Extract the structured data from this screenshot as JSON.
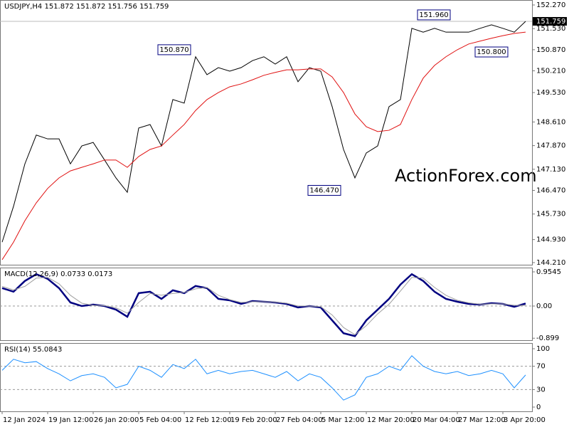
{
  "chart_data": [
    {
      "type": "line",
      "title": "USDJPY,H4  151.872 151.872 151.756 151.759",
      "watermark": "ActionForex.com",
      "categories": [
        "12 Jan 2024",
        null,
        null,
        null,
        "19 Jan 12:00",
        null,
        null,
        null,
        "26 Jan 20:00",
        null,
        null,
        null,
        "5 Feb 04:00",
        null,
        null,
        null,
        "12 Feb 12:00",
        null,
        null,
        null,
        "19 Feb 20:00",
        null,
        null,
        null,
        "27 Feb 04:00",
        null,
        null,
        null,
        "5 Mar 12:00",
        null,
        null,
        null,
        "12 Mar 20:00",
        null,
        null,
        null,
        "20 Mar 04:00",
        null,
        null,
        null,
        "27 Mar 12:00",
        null,
        null,
        null,
        "3 Apr 20:00",
        null,
        null
      ],
      "series": [
        {
          "color": "#000000",
          "values": [
            144.85,
            145.97,
            147.3,
            148.2,
            148.08,
            148.08,
            147.3,
            147.86,
            147.97,
            147.42,
            146.86,
            146.41,
            148.42,
            148.53,
            147.86,
            149.31,
            149.2,
            150.65,
            150.09,
            150.31,
            150.2,
            150.31,
            150.53,
            150.65,
            150.42,
            150.65,
            149.87,
            150.31,
            150.2,
            149.09,
            147.75,
            146.86,
            147.64,
            147.86,
            149.09,
            149.31,
            151.54,
            151.42,
            151.54,
            151.42,
            151.42,
            151.42,
            151.54,
            151.65,
            151.54,
            151.42,
            151.759
          ]
        },
        {
          "color": "#e01010",
          "values": [
            144.3,
            144.85,
            145.52,
            146.08,
            146.53,
            146.86,
            147.08,
            147.19,
            147.3,
            147.42,
            147.42,
            147.19,
            147.53,
            147.75,
            147.86,
            148.2,
            148.53,
            148.97,
            149.31,
            149.53,
            149.71,
            149.8,
            149.93,
            150.07,
            150.16,
            150.24,
            150.24,
            150.27,
            150.27,
            150.02,
            149.53,
            148.86,
            148.46,
            148.31,
            148.35,
            148.53,
            149.31,
            149.98,
            150.38,
            150.65,
            150.87,
            151.05,
            151.14,
            151.23,
            151.31,
            151.38,
            151.42
          ]
        }
      ],
      "ylim": [
        144.143,
        152.426
      ],
      "yticks": [
        {
          "value": 152.27,
          "label": "152.270"
        },
        {
          "value": 151.53,
          "label": "151.530"
        },
        {
          "value": 150.87,
          "label": "150.870"
        },
        {
          "value": 150.21,
          "label": "150.210"
        },
        {
          "value": 149.53,
          "label": "149.530"
        },
        {
          "value": 148.61,
          "label": "148.610"
        },
        {
          "value": 147.87,
          "label": "147.870"
        },
        {
          "value": 147.13,
          "label": "147.130"
        },
        {
          "value": 146.47,
          "label": "146.470"
        },
        {
          "value": 145.73,
          "label": "145.730"
        },
        {
          "value": 144.93,
          "label": "144.930"
        },
        {
          "value": 144.21,
          "label": "144.210"
        }
      ],
      "last_price": {
        "value": 151.759,
        "label": "151.759"
      },
      "annotations": [
        {
          "value": 150.87,
          "label": "150.870"
        },
        {
          "value": 151.96,
          "label": "151.960"
        },
        {
          "value": 150.8,
          "label": "150.800"
        },
        {
          "value": 146.47,
          "label": "146.470"
        }
      ]
    },
    {
      "type": "line",
      "title": "MACD(12,26,9) 0.0733 0.0173",
      "series": [
        {
          "color": "#000080",
          "values": [
            0.5,
            0.4,
            0.7,
            0.89,
            0.76,
            0.5,
            0.1,
            0,
            0.04,
            0,
            -0.1,
            -0.3,
            0.36,
            0.4,
            0.2,
            0.44,
            0.36,
            0.56,
            0.5,
            0.2,
            0.16,
            0.06,
            0.14,
            0.12,
            0.1,
            0.06,
            -0.04,
            0,
            -0.04,
            -0.4,
            -0.76,
            -0.84,
            -0.4,
            -0.1,
            0.2,
            0.6,
            0.89,
            0.7,
            0.4,
            0.2,
            0.12,
            0.06,
            0.04,
            0.08,
            0.06,
            -0.02,
            0.07
          ]
        },
        {
          "color": "#a0a0a0",
          "values": [
            0.55,
            0.45,
            0.55,
            0.78,
            0.8,
            0.62,
            0.3,
            0.08,
            0.02,
            0.01,
            -0.05,
            -0.2,
            0.1,
            0.35,
            0.3,
            0.35,
            0.38,
            0.48,
            0.52,
            0.3,
            0.18,
            0.1,
            0.12,
            0.12,
            0.11,
            0.08,
            0,
            0,
            -0.02,
            -0.25,
            -0.6,
            -0.8,
            -0.55,
            -0.22,
            0.05,
            0.42,
            0.8,
            0.78,
            0.52,
            0.3,
            0.16,
            0.09,
            0.05,
            0.06,
            0.06,
            0.02,
            0.02
          ]
        }
      ],
      "ylim": [
        -0.954,
        1.074
      ],
      "yticks": [
        0.9545,
        {
          "value": 0,
          "label": "0.00"
        },
        -0.899
      ],
      "levels": [
        0
      ]
    },
    {
      "type": "line",
      "title": "RSI(14) 55.0843",
      "series": [
        {
          "color": "#1e90ff",
          "values": [
            63,
            82,
            76,
            78,
            66,
            57,
            45,
            54,
            57,
            51,
            33,
            39,
            70,
            63,
            51,
            73,
            66,
            82,
            57,
            63,
            57,
            61,
            63,
            57,
            51,
            61,
            45,
            57,
            51,
            33,
            12,
            21,
            51,
            57,
            70,
            63,
            88,
            70,
            61,
            57,
            61,
            54,
            57,
            63,
            57,
            33,
            55.0843
          ]
        }
      ],
      "ylim": [
        -7.3,
        109.8
      ],
      "yticks": [
        100,
        70,
        30,
        0
      ],
      "levels": [
        70,
        30
      ]
    }
  ]
}
